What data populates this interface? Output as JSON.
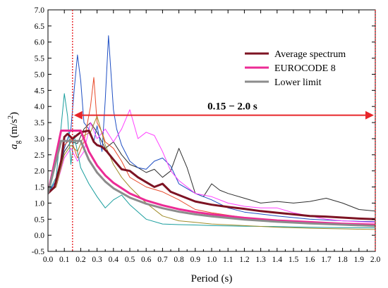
{
  "chart_data": {
    "type": "line",
    "title": "",
    "xlabel": "Period (s)",
    "ylabel_main": "a",
    "ylabel_sub": "g",
    "ylabel_unit": " (m/s",
    "ylabel_sup": "2",
    "ylabel_close": ")",
    "xlim": [
      0.0,
      2.0
    ],
    "ylim": [
      -0.5,
      7.0
    ],
    "x_ticks": [
      "0.0",
      "0.1",
      "0.2",
      "0.3",
      "0.4",
      "0.5",
      "0.6",
      "0.7",
      "0.8",
      "0.9",
      "1.0",
      "1.1",
      "1.2",
      "1.3",
      "1.4",
      "1.5",
      "1.6",
      "1.7",
      "1.8",
      "1.9",
      "2.0"
    ],
    "y_ticks": [
      "-0.5",
      "0.0",
      "0.5",
      "1.0",
      "1.5",
      "2.0",
      "2.5",
      "3.0",
      "3.5",
      "4.0",
      "4.5",
      "5.0",
      "5.5",
      "6.0",
      "6.5",
      "7.0"
    ],
    "legend_position": "top-right",
    "grid": false,
    "vlines": [
      {
        "x": 0.15,
        "color": "#e8262a",
        "style": "dotted"
      },
      {
        "x": 2.0,
        "color": "#e8262a",
        "style": "dotted"
      }
    ],
    "annotation": {
      "text": "0.15 − 2.0 s",
      "x_start": 0.15,
      "x_end": 2.0,
      "y": 3.75,
      "color": "#e8262a"
    },
    "series": [
      {
        "name": "Average spectrum",
        "color": "#7d1323",
        "width": 3,
        "legend": true,
        "x": [
          0,
          0.04,
          0.08,
          0.1,
          0.12,
          0.15,
          0.2,
          0.25,
          0.28,
          0.3,
          0.33,
          0.36,
          0.4,
          0.45,
          0.5,
          0.55,
          0.6,
          0.65,
          0.7,
          0.75,
          0.8,
          0.9,
          1.0,
          1.1,
          1.2,
          1.3,
          1.4,
          1.5,
          1.6,
          1.7,
          1.8,
          1.9,
          2.0
        ],
        "y": [
          1.3,
          1.5,
          2.3,
          3.05,
          3.15,
          3.0,
          3.2,
          3.25,
          2.9,
          2.8,
          2.75,
          2.6,
          2.35,
          2.05,
          2.0,
          1.8,
          1.65,
          1.5,
          1.6,
          1.35,
          1.25,
          1.05,
          0.95,
          0.88,
          0.82,
          0.75,
          0.7,
          0.65,
          0.6,
          0.58,
          0.55,
          0.52,
          0.5
        ]
      },
      {
        "name": "EUROCODE 8",
        "color": "#ec2b95",
        "width": 3,
        "legend": true,
        "x": [
          0,
          0.08,
          0.2,
          0.25,
          0.3,
          0.35,
          0.4,
          0.5,
          0.6,
          0.7,
          0.8,
          0.9,
          1.0,
          1.2,
          1.4,
          1.6,
          1.8,
          2.0
        ],
        "y": [
          1.3,
          3.25,
          3.25,
          2.6,
          2.17,
          1.86,
          1.63,
          1.3,
          1.08,
          0.93,
          0.81,
          0.72,
          0.65,
          0.54,
          0.46,
          0.41,
          0.36,
          0.33
        ]
      },
      {
        "name": "Lower limit",
        "color": "#8c8c8c",
        "width": 3,
        "legend": true,
        "x": [
          0,
          0.08,
          0.2,
          0.25,
          0.3,
          0.35,
          0.4,
          0.5,
          0.6,
          0.7,
          0.8,
          0.9,
          1.0,
          1.2,
          1.4,
          1.6,
          1.8,
          2.0
        ],
        "y": [
          1.3,
          2.93,
          2.93,
          2.34,
          1.95,
          1.67,
          1.46,
          1.17,
          0.98,
          0.84,
          0.73,
          0.65,
          0.59,
          0.49,
          0.42,
          0.37,
          0.33,
          0.29
        ]
      },
      {
        "name": "",
        "color": "#2e2e2e",
        "width": 1,
        "legend": false,
        "x": [
          0,
          0.05,
          0.1,
          0.14,
          0.18,
          0.22,
          0.26,
          0.3,
          0.35,
          0.4,
          0.45,
          0.5,
          0.55,
          0.6,
          0.65,
          0.7,
          0.75,
          0.8,
          0.85,
          0.9,
          0.95,
          1.0,
          1.05,
          1.1,
          1.2,
          1.3,
          1.4,
          1.5,
          1.6,
          1.7,
          1.8,
          1.9,
          2.0
        ],
        "y": [
          1.3,
          1.6,
          2.6,
          2.9,
          2.85,
          3.3,
          3.5,
          3.2,
          2.7,
          2.9,
          2.5,
          2.2,
          2.1,
          1.95,
          2.05,
          1.8,
          2.0,
          2.7,
          2.1,
          1.3,
          1.2,
          1.6,
          1.4,
          1.3,
          1.15,
          1.0,
          1.05,
          1.0,
          1.05,
          1.15,
          1.0,
          0.8,
          0.75
        ]
      },
      {
        "name": "",
        "color": "#1f4fc4",
        "width": 1,
        "legend": false,
        "x": [
          0,
          0.05,
          0.1,
          0.14,
          0.16,
          0.18,
          0.2,
          0.22,
          0.25,
          0.28,
          0.3,
          0.33,
          0.35,
          0.37,
          0.4,
          0.42,
          0.45,
          0.5,
          0.55,
          0.6,
          0.65,
          0.7,
          0.75,
          0.8,
          0.9,
          1.0,
          1.1,
          1.2,
          1.4,
          1.6,
          1.8,
          2.0
        ],
        "y": [
          1.3,
          1.7,
          2.7,
          3.3,
          4.5,
          5.6,
          4.8,
          3.5,
          3.3,
          2.9,
          3.4,
          2.6,
          4.2,
          6.2,
          3.9,
          3.3,
          2.8,
          2.3,
          2.1,
          2.05,
          2.3,
          2.4,
          2.15,
          1.6,
          1.3,
          1.1,
          0.85,
          0.72,
          0.6,
          0.5,
          0.45,
          0.42
        ]
      },
      {
        "name": "",
        "color": "#e84a2a",
        "width": 1,
        "legend": false,
        "x": [
          0,
          0.05,
          0.1,
          0.14,
          0.18,
          0.22,
          0.26,
          0.28,
          0.3,
          0.33,
          0.35,
          0.4,
          0.45,
          0.5,
          0.6,
          0.7,
          0.8,
          0.9,
          1.0,
          1.2,
          1.4,
          1.6,
          1.8,
          2.0
        ],
        "y": [
          1.3,
          1.6,
          2.8,
          3.0,
          2.4,
          2.9,
          4.0,
          4.9,
          3.5,
          3.2,
          2.9,
          2.7,
          2.3,
          1.8,
          1.5,
          1.35,
          1.1,
          0.8,
          0.7,
          0.55,
          0.45,
          0.38,
          0.32,
          0.28
        ]
      },
      {
        "name": "",
        "color": "#ff40ff",
        "width": 1,
        "legend": false,
        "x": [
          0,
          0.05,
          0.1,
          0.14,
          0.18,
          0.22,
          0.26,
          0.3,
          0.35,
          0.4,
          0.45,
          0.5,
          0.55,
          0.6,
          0.65,
          0.7,
          0.75,
          0.8,
          0.9,
          1.0,
          1.1,
          1.2,
          1.3,
          1.4,
          1.5,
          1.6,
          1.7,
          1.8,
          1.9,
          2.0
        ],
        "y": [
          1.3,
          1.5,
          2.4,
          2.7,
          2.3,
          2.6,
          3.5,
          3.0,
          3.3,
          2.9,
          3.3,
          3.9,
          3.0,
          3.2,
          3.1,
          2.6,
          2.0,
          1.7,
          1.3,
          1.2,
          1.0,
          0.9,
          0.85,
          0.85,
          0.7,
          0.6,
          0.5,
          0.45,
          0.42,
          0.4
        ]
      },
      {
        "name": "",
        "color": "#1a9e9e",
        "width": 1,
        "legend": false,
        "x": [
          0,
          0.05,
          0.1,
          0.12,
          0.14,
          0.16,
          0.2,
          0.25,
          0.3,
          0.35,
          0.4,
          0.45,
          0.5,
          0.6,
          0.7,
          0.8,
          0.9,
          1.0,
          1.2,
          1.4,
          1.6,
          1.8,
          2.0
        ],
        "y": [
          1.3,
          1.8,
          4.4,
          3.7,
          2.2,
          3.1,
          2.1,
          1.6,
          1.2,
          0.85,
          1.1,
          1.25,
          0.95,
          0.5,
          0.35,
          0.33,
          0.32,
          0.3,
          0.28,
          0.27,
          0.25,
          0.24,
          0.23
        ]
      },
      {
        "name": "",
        "color": "#a08c2a",
        "width": 1,
        "legend": false,
        "x": [
          0,
          0.05,
          0.1,
          0.14,
          0.18,
          0.22,
          0.26,
          0.3,
          0.35,
          0.4,
          0.45,
          0.5,
          0.6,
          0.7,
          0.8,
          0.9,
          1.0,
          1.2,
          1.4,
          1.6,
          1.8,
          2.0
        ],
        "y": [
          1.3,
          1.5,
          2.5,
          2.8,
          2.6,
          3.1,
          3.2,
          3.7,
          2.8,
          2.2,
          1.8,
          1.5,
          1.0,
          0.6,
          0.45,
          0.4,
          0.35,
          0.3,
          0.25,
          0.22,
          0.2,
          0.18
        ]
      }
    ]
  }
}
